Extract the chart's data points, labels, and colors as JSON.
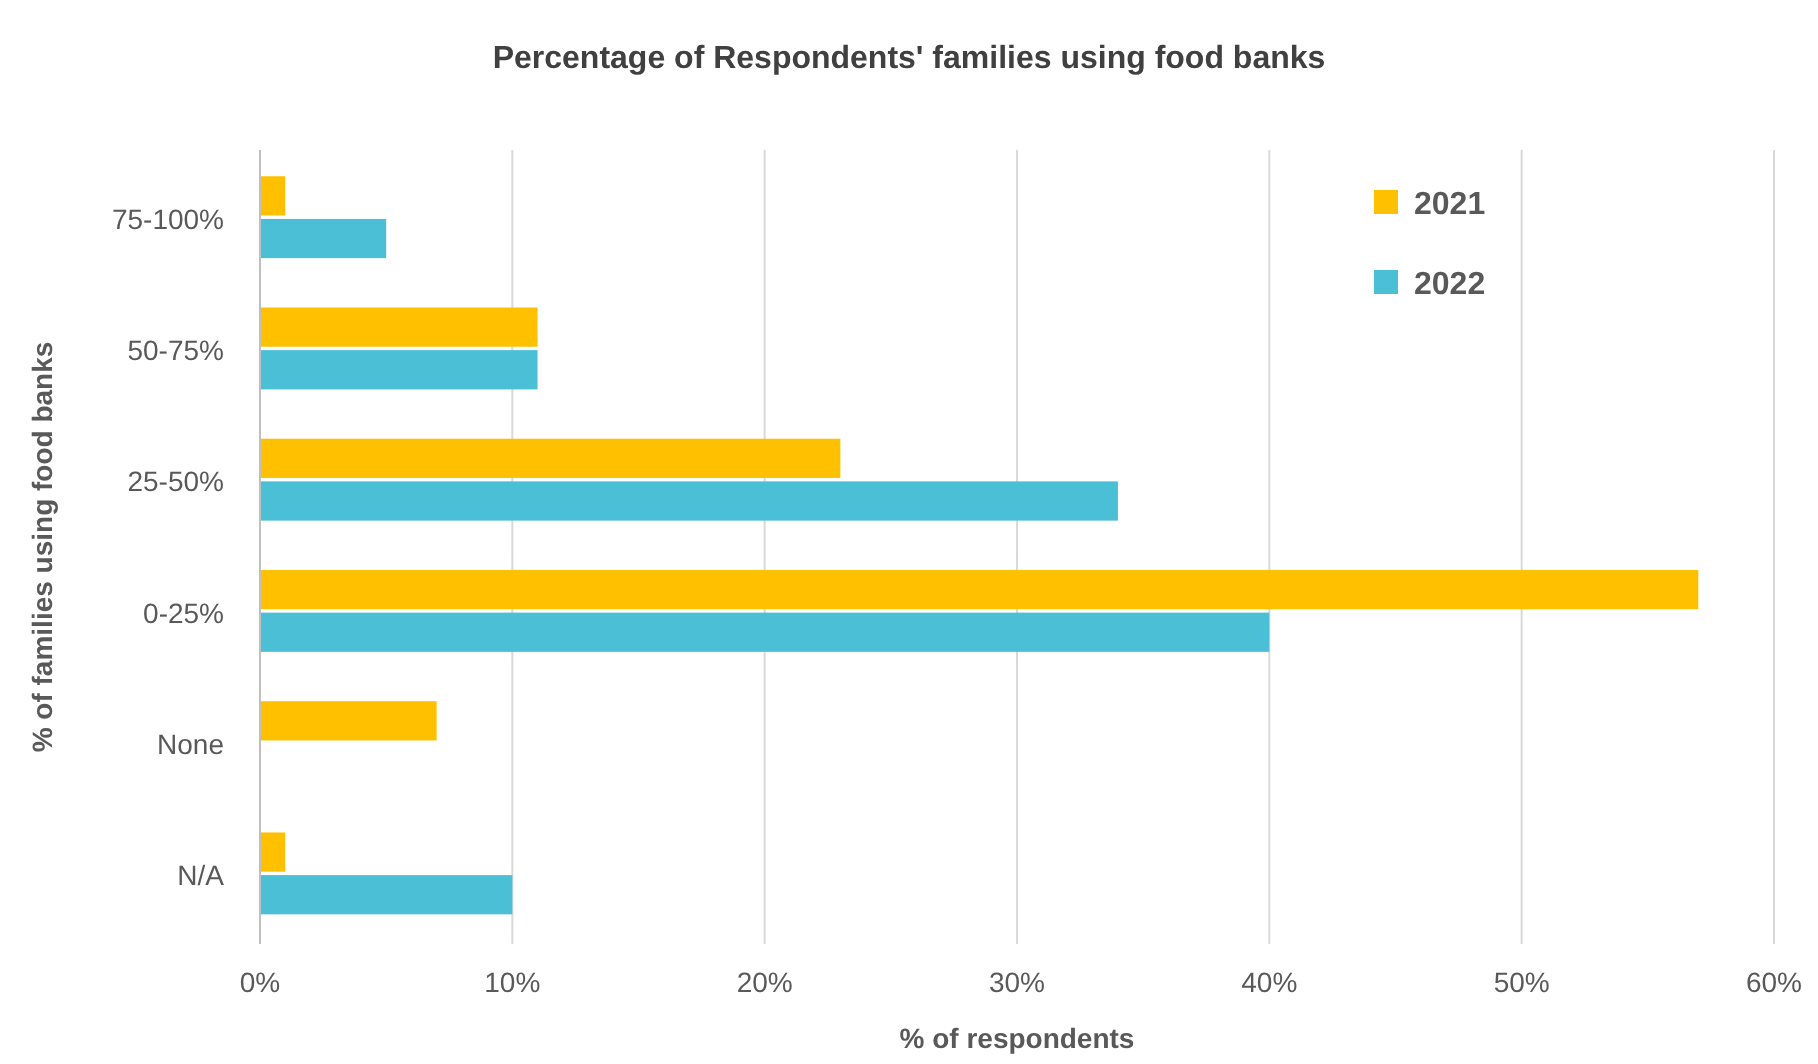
{
  "chart_data": {
    "type": "bar",
    "orientation": "horizontal",
    "title": "Percentage of Respondents' families using food banks",
    "xlabel": "% of respondents",
    "ylabel": "% of families  using food banks",
    "categories": [
      "75-100%",
      "50-75%",
      "25-50%",
      "0-25%",
      "None",
      "N/A"
    ],
    "series": [
      {
        "name": "2021",
        "color": "#ffc000",
        "values": [
          1,
          11,
          23,
          57,
          7,
          1
        ]
      },
      {
        "name": "2022",
        "color": "#4bbfd6",
        "values": [
          5,
          11,
          34,
          40,
          null,
          10
        ]
      }
    ],
    "xlim": [
      0,
      60
    ],
    "xticks": [
      {
        "value": 0,
        "label": "0%"
      },
      {
        "value": 10,
        "label": "10%"
      },
      {
        "value": 20,
        "label": "20%"
      },
      {
        "value": 30,
        "label": "30%"
      },
      {
        "value": 40,
        "label": "40%"
      },
      {
        "value": 50,
        "label": "50%"
      },
      {
        "value": 60,
        "label": "60%"
      }
    ],
    "grid": "x",
    "legend": "top right"
  }
}
